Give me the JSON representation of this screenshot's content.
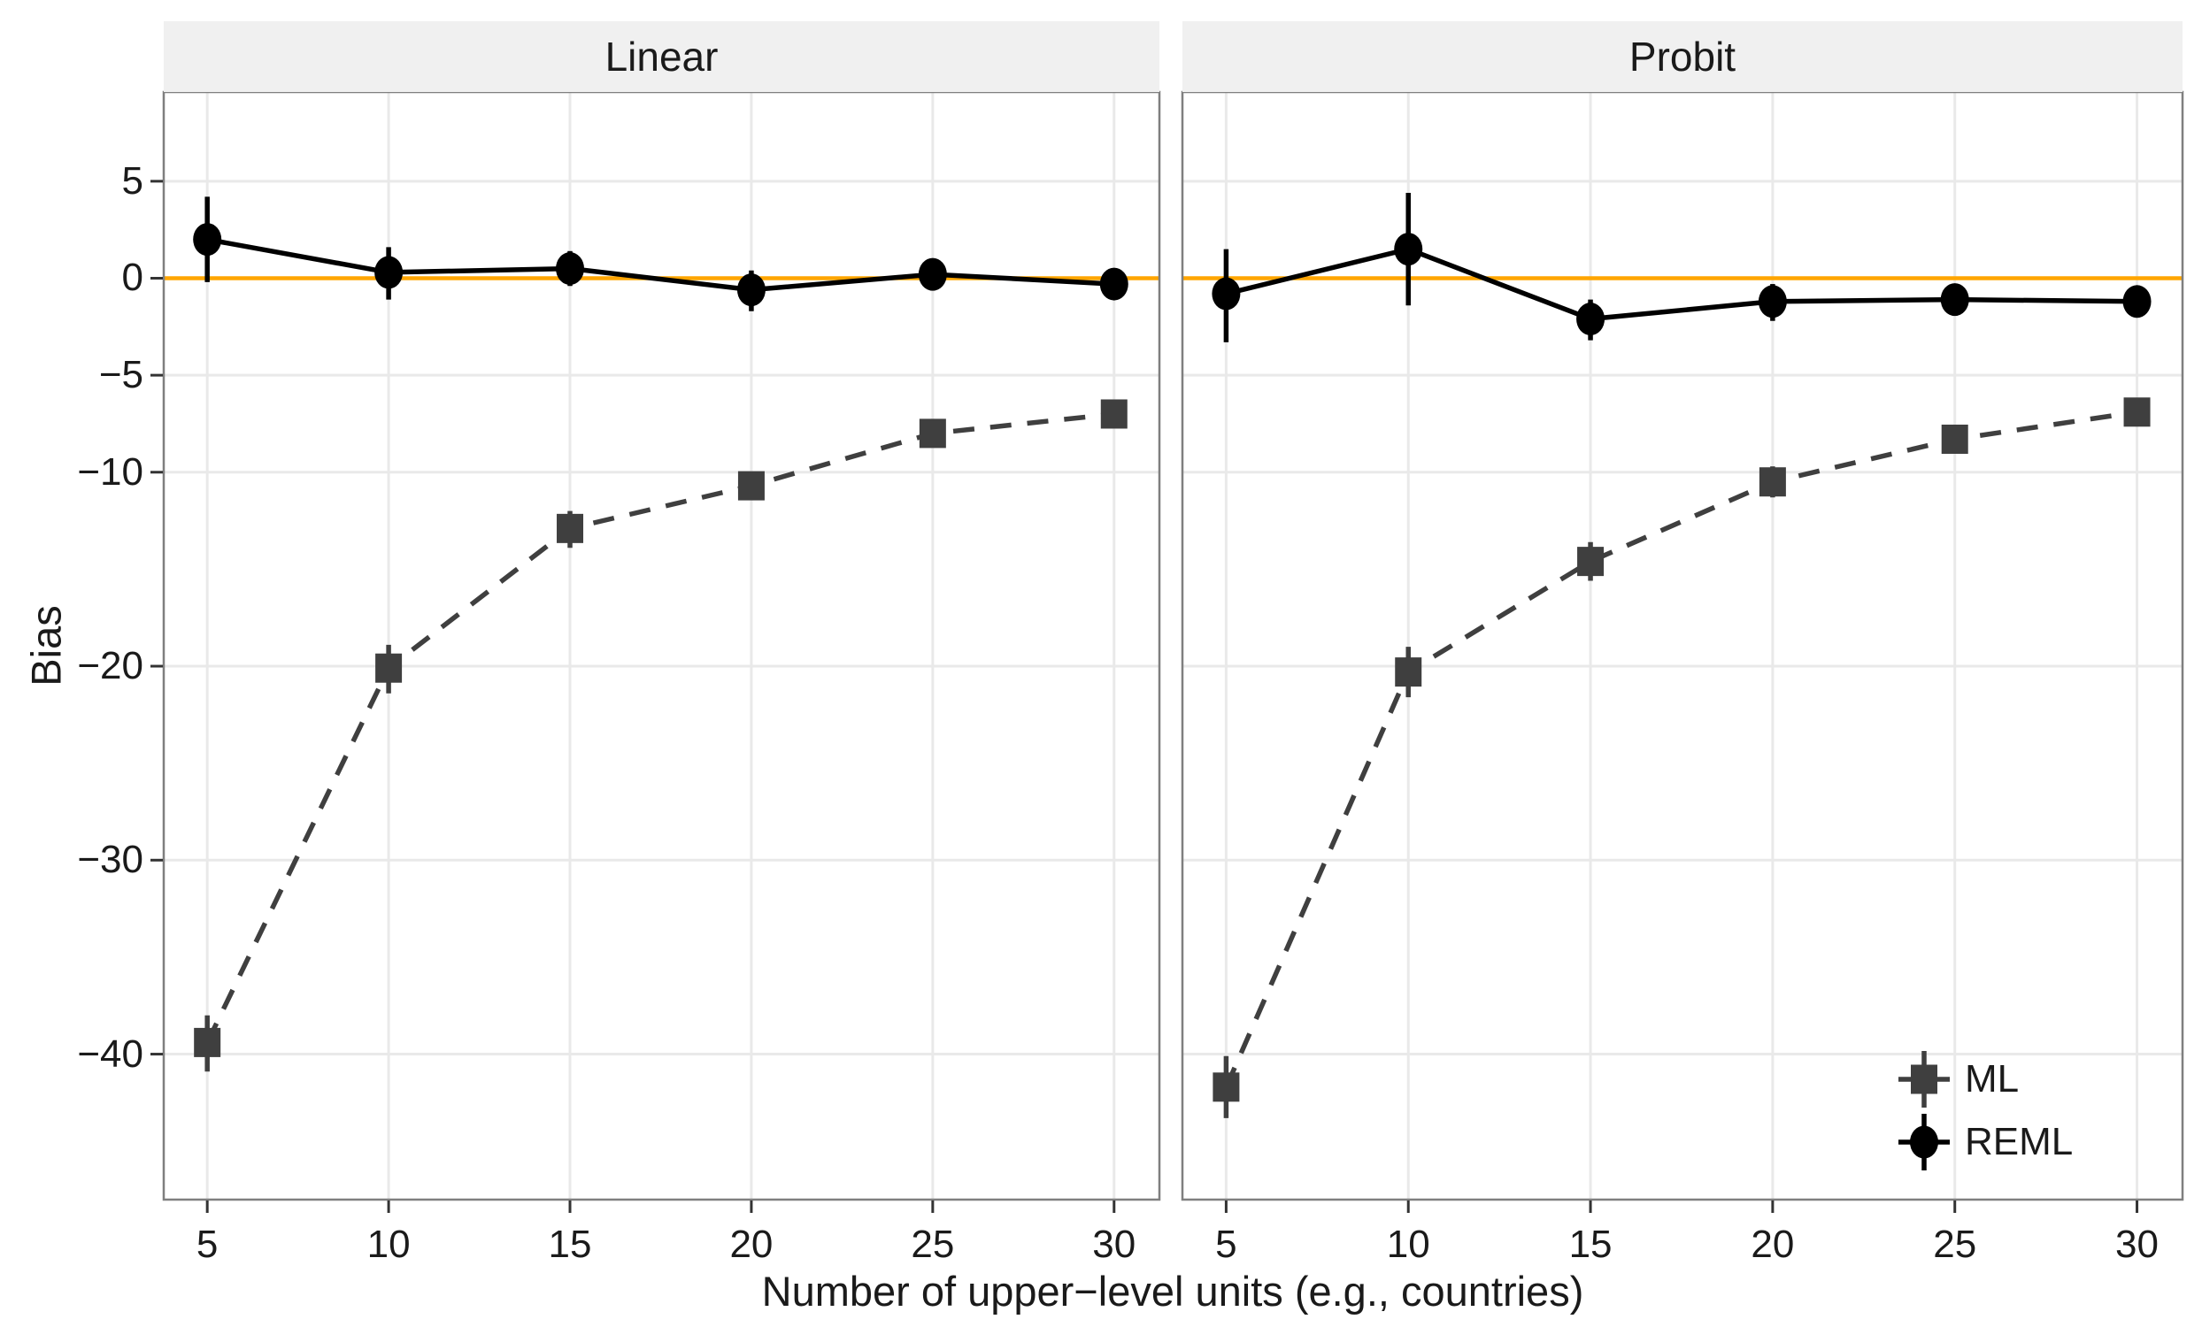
{
  "figure": {
    "strip_labels": [
      "Linear",
      "Probit"
    ],
    "legend": {
      "position": "inside-bottom-right-of-right-panel",
      "items": [
        {
          "label": "ML",
          "marker": "square",
          "color": "#3F3F3F"
        },
        {
          "label": "REML",
          "marker": "circle",
          "color": "#000000"
        }
      ]
    },
    "colors": {
      "background": "#FFFFFF",
      "strip_background": "#F0F0F0",
      "panel_border": "#7F7F7F",
      "gridline": "#E9E9E9",
      "reference_line": "#FFA500",
      "ml_series": "#3F3F3F",
      "reml_series": "#000000",
      "tick_mark": "#333333",
      "text": "#1A1A1A"
    }
  },
  "chart_data": {
    "type": "line",
    "title": "",
    "xlabel": "Number of upper−level units (e.g., countries)",
    "ylabel": "Bias",
    "x_breaks": [
      5,
      10,
      15,
      20,
      25,
      30
    ],
    "x_tick_labels": [
      "5",
      "10",
      "15",
      "20",
      "25",
      "30"
    ],
    "y_breaks": [
      5,
      0,
      -5,
      -10,
      -20,
      -30,
      -40
    ],
    "y_tick_labels": [
      "5",
      "0",
      "−5",
      "−10",
      "−20",
      "−30",
      "−40"
    ],
    "xlim": [
      3.8,
      31.25
    ],
    "ylim": [
      -47.5,
      9.6
    ],
    "grid": "major-breaks-only",
    "reference_line_y": 0,
    "legend_position": "inside-bottom-right",
    "facets": [
      {
        "title": "Linear",
        "series": [
          {
            "name": "ML",
            "marker": "square",
            "line": "dashed",
            "x": [
              5,
              10,
              15,
              20,
              25,
              30
            ],
            "y": [
              -39.4,
              -20.1,
              -12.9,
              -10.7,
              -8.0,
              -7.0
            ],
            "ymin": [
              -40.9,
              -21.4,
              -13.9,
              -11.4,
              -8.6,
              -7.6
            ],
            "ymax": [
              -38.0,
              -18.9,
              -12.0,
              -10.0,
              -7.4,
              -6.4
            ]
          },
          {
            "name": "REML",
            "marker": "circle",
            "line": "solid",
            "x": [
              5,
              10,
              15,
              20,
              25,
              30
            ],
            "y": [
              2.0,
              0.3,
              0.5,
              -0.6,
              0.2,
              -0.3
            ],
            "ymin": [
              -0.2,
              -1.1,
              -0.4,
              -1.7,
              -0.5,
              -0.9
            ],
            "ymax": [
              4.2,
              1.6,
              1.4,
              0.4,
              0.9,
              0.3
            ]
          }
        ]
      },
      {
        "title": "Probit",
        "series": [
          {
            "name": "ML",
            "marker": "square",
            "line": "dashed",
            "x": [
              5,
              10,
              15,
              20,
              25,
              30
            ],
            "y": [
              -41.7,
              -20.3,
              -14.6,
              -10.5,
              -8.3,
              -6.9
            ],
            "ymin": [
              -43.3,
              -21.6,
              -15.6,
              -11.3,
              -9.0,
              -7.5
            ],
            "ymax": [
              -40.1,
              -19.0,
              -13.6,
              -9.7,
              -7.6,
              -6.3
            ]
          },
          {
            "name": "REML",
            "marker": "circle",
            "line": "solid",
            "x": [
              5,
              10,
              15,
              20,
              25,
              30
            ],
            "y": [
              -0.8,
              1.5,
              -2.1,
              -1.2,
              -1.1,
              -1.2
            ],
            "ymin": [
              -3.3,
              -1.4,
              -3.2,
              -2.2,
              -1.9,
              -2.0
            ],
            "ymax": [
              1.5,
              4.4,
              -1.1,
              -0.3,
              -0.3,
              -0.5
            ]
          }
        ]
      }
    ]
  }
}
